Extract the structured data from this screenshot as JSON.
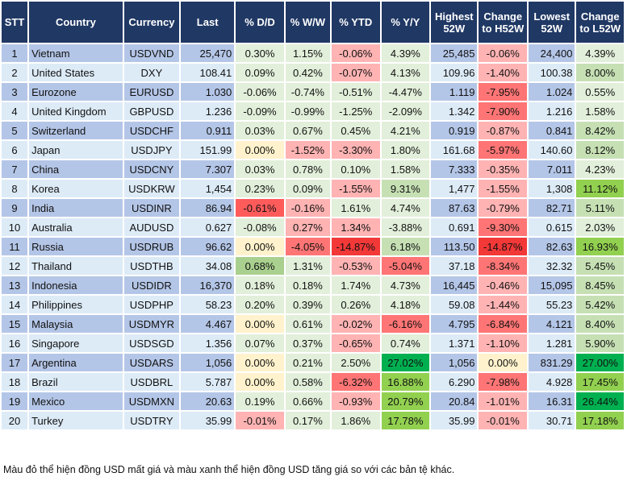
{
  "headers": [
    "STT",
    "Country",
    "Currency",
    "Last",
    "% D/D",
    "% W/W",
    "% YTD",
    "% Y/Y",
    "Highest 52W",
    "Change to H52W",
    "Lowest 52W",
    "Change to L52W"
  ],
  "heat_colors": {
    "g1": "#e2efda",
    "g2": "#c6e0b4",
    "g2b": "#a9d08e",
    "g3": "#92d050",
    "g4": "#00b050",
    "y": "#fff2cc",
    "r1": "#ffb3b3",
    "r2": "#ff7575",
    "r3": "#ff5b5b",
    "r4": "#f33838"
  },
  "rows": [
    [
      "1",
      "Vietnam",
      "USDVND",
      "25,470",
      "0.30%",
      "1.15%",
      "-0.06%",
      "4.39%",
      "25,485",
      "-0.06%",
      "24,400",
      "4.39%"
    ],
    [
      "2",
      "United States",
      "DXY",
      "108.41",
      "0.09%",
      "0.42%",
      "-0.07%",
      "4.13%",
      "109.96",
      "-1.40%",
      "100.38",
      "8.00%"
    ],
    [
      "3",
      "Eurozone",
      "EURUSD",
      "1.030",
      "-0.06%",
      "-0.74%",
      "-0.51%",
      "-4.47%",
      "1.119",
      "-7.95%",
      "1.024",
      "0.55%"
    ],
    [
      "4",
      "United Kingdom",
      "GBPUSD",
      "1.236",
      "-0.09%",
      "-0.99%",
      "-1.25%",
      "-2.09%",
      "1.342",
      "-7.90%",
      "1.216",
      "1.58%"
    ],
    [
      "5",
      "Switzerland",
      "USDCHF",
      "0.911",
      "0.03%",
      "0.67%",
      "0.45%",
      "4.21%",
      "0.919",
      "-0.87%",
      "0.841",
      "8.42%"
    ],
    [
      "6",
      "Japan",
      "USDJPY",
      "151.99",
      "0.00%",
      "-1.52%",
      "-3.30%",
      "1.80%",
      "161.68",
      "-5.97%",
      "140.60",
      "8.12%"
    ],
    [
      "7",
      "China",
      "USDCNY",
      "7.307",
      "0.03%",
      "0.78%",
      "0.10%",
      "1.58%",
      "7.333",
      "-0.35%",
      "7.011",
      "4.23%"
    ],
    [
      "8",
      "Korea",
      "USDKRW",
      "1,454",
      "0.23%",
      "0.09%",
      "-1.55%",
      "9.31%",
      "1,477",
      "-1.55%",
      "1,308",
      "11.12%"
    ],
    [
      "9",
      "India",
      "USDINR",
      "86.94",
      "-0.61%",
      "-0.16%",
      "1.61%",
      "4.74%",
      "87.63",
      "-0.79%",
      "82.71",
      "5.11%"
    ],
    [
      "10",
      "Australia",
      "AUDUSD",
      "0.627",
      "-0.08%",
      "0.27%",
      "1.34%",
      "-3.88%",
      "0.691",
      "-9.30%",
      "0.615",
      "2.03%"
    ],
    [
      "11",
      "Russia",
      "USDRUB",
      "96.62",
      "0.00%",
      "-4.05%",
      "-14.87%",
      "6.18%",
      "113.50",
      "-14.87%",
      "82.63",
      "16.93%"
    ],
    [
      "12",
      "Thailand",
      "USDTHB",
      "34.08",
      "0.68%",
      "1.31%",
      "-0.53%",
      "-5.04%",
      "37.18",
      "-8.34%",
      "32.32",
      "5.45%"
    ],
    [
      "13",
      "Indonesia",
      "USDIDR",
      "16,370",
      "0.18%",
      "0.18%",
      "1.74%",
      "4.73%",
      "16,445",
      "-0.46%",
      "15,095",
      "8.45%"
    ],
    [
      "14",
      "Philippines",
      "USDPHP",
      "58.23",
      "0.20%",
      "0.39%",
      "0.26%",
      "4.18%",
      "59.08",
      "-1.44%",
      "55.23",
      "5.42%"
    ],
    [
      "15",
      "Malaysia",
      "USDMYR",
      "4.467",
      "0.00%",
      "0.61%",
      "-0.02%",
      "-6.16%",
      "4.795",
      "-6.84%",
      "4.121",
      "8.40%"
    ],
    [
      "16",
      "Singapore",
      "USDSGD",
      "1.356",
      "0.07%",
      "0.37%",
      "-0.65%",
      "0.74%",
      "1.371",
      "-1.10%",
      "1.281",
      "5.90%"
    ],
    [
      "17",
      "Argentina",
      "USDARS",
      "1,056",
      "0.00%",
      "0.21%",
      "2.50%",
      "27.02%",
      "1,056",
      "0.00%",
      "831.29",
      "27.00%"
    ],
    [
      "18",
      "Brazil",
      "USDBRL",
      "5.787",
      "0.00%",
      "0.58%",
      "-6.32%",
      "16.88%",
      "6.290",
      "-7.98%",
      "4.928",
      "17.45%"
    ],
    [
      "19",
      "Mexico",
      "USDMXN",
      "20.63",
      "0.19%",
      "0.66%",
      "-0.93%",
      "20.79%",
      "20.84",
      "-1.01%",
      "16.31",
      "26.44%"
    ],
    [
      "20",
      "Turkey",
      "USDTRY",
      "35.99",
      "-0.01%",
      "0.17%",
      "1.86%",
      "17.78%",
      "35.99",
      "-0.01%",
      "30.71",
      "17.18%"
    ]
  ],
  "cell_heat": [
    [
      "g1",
      "g1",
      "r1",
      "g1",
      "r1",
      "g1"
    ],
    [
      "g1",
      "g1",
      "r1",
      "g1",
      "r1",
      "g2"
    ],
    [
      "g1",
      "g1",
      "g1",
      "g1",
      "r2",
      "g1"
    ],
    [
      "g1",
      "g1",
      "g1",
      "g1",
      "r2",
      "g1"
    ],
    [
      "g1",
      "g1",
      "g1",
      "g1",
      "r1",
      "g2"
    ],
    [
      "y",
      "r1",
      "r1",
      "g1",
      "r2",
      "g2"
    ],
    [
      "g1",
      "g1",
      "g1",
      "g1",
      "r1",
      "g1"
    ],
    [
      "g1",
      "g1",
      "r1",
      "g2",
      "r1",
      "g3"
    ],
    [
      "r3",
      "r1",
      "g1",
      "g1",
      "r1",
      "g2"
    ],
    [
      "g1",
      "r1",
      "r1",
      "g1",
      "r2",
      "g1"
    ],
    [
      "y",
      "r2",
      "r4",
      "g2",
      "r4",
      "g3"
    ],
    [
      "g2b",
      "g1",
      "r1",
      "r2",
      "r2",
      "g2"
    ],
    [
      "g1",
      "g1",
      "g1",
      "g1",
      "r1",
      "g2"
    ],
    [
      "g1",
      "g1",
      "g1",
      "g1",
      "r1",
      "g2"
    ],
    [
      "y",
      "g1",
      "r1",
      "r2",
      "r2",
      "g2"
    ],
    [
      "g1",
      "g1",
      "r1",
      "g1",
      "r1",
      "g2"
    ],
    [
      "y",
      "g1",
      "g1",
      "g4",
      "y",
      "g4"
    ],
    [
      "y",
      "g1",
      "r2",
      "g3",
      "r2",
      "g3"
    ],
    [
      "g1",
      "g1",
      "r1",
      "g3",
      "r1",
      "g4"
    ],
    [
      "r1",
      "g1",
      "g1",
      "g3",
      "r1",
      "g3"
    ]
  ],
  "footnote": "Màu đỏ thể hiện đồng USD mất giá và màu xanh thể hiện đồng USD tăng giá so với các bản tệ khác."
}
